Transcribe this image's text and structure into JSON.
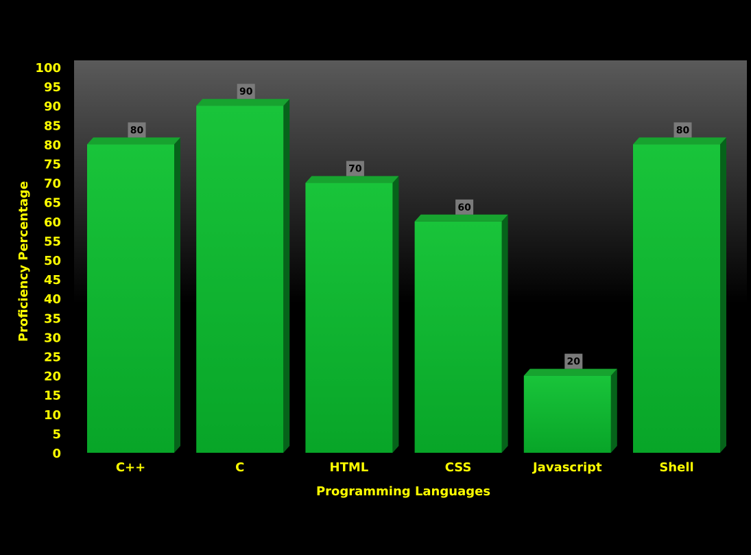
{
  "colors": {
    "background": "#000000",
    "plot_top": "#5a5a5a",
    "plot_bottom": "#000000",
    "bar_front_light": "#19c43a",
    "bar_front_dark": "#08a528",
    "bar_top": "#17a32f",
    "bar_side": "#06631a",
    "label_text": "#ffff00",
    "value_box": "#7a7a7a"
  },
  "chart_data": {
    "type": "bar",
    "title": "",
    "xlabel": "Programming Languages",
    "ylabel": "Proficiency Percentage",
    "categories": [
      "C++",
      "C",
      "HTML",
      "CSS",
      "Javascript",
      "Shell"
    ],
    "values": [
      80,
      90,
      70,
      60,
      20,
      80
    ],
    "ylim": [
      0,
      100
    ],
    "yticks": [
      0,
      5,
      10,
      15,
      20,
      25,
      30,
      35,
      40,
      45,
      50,
      55,
      60,
      65,
      70,
      75,
      80,
      85,
      90,
      95,
      100
    ],
    "data_labels": [
      "80",
      "90",
      "70",
      "60",
      "20",
      "80"
    ],
    "grid": false,
    "legend": "none",
    "style": "3d-bar"
  }
}
